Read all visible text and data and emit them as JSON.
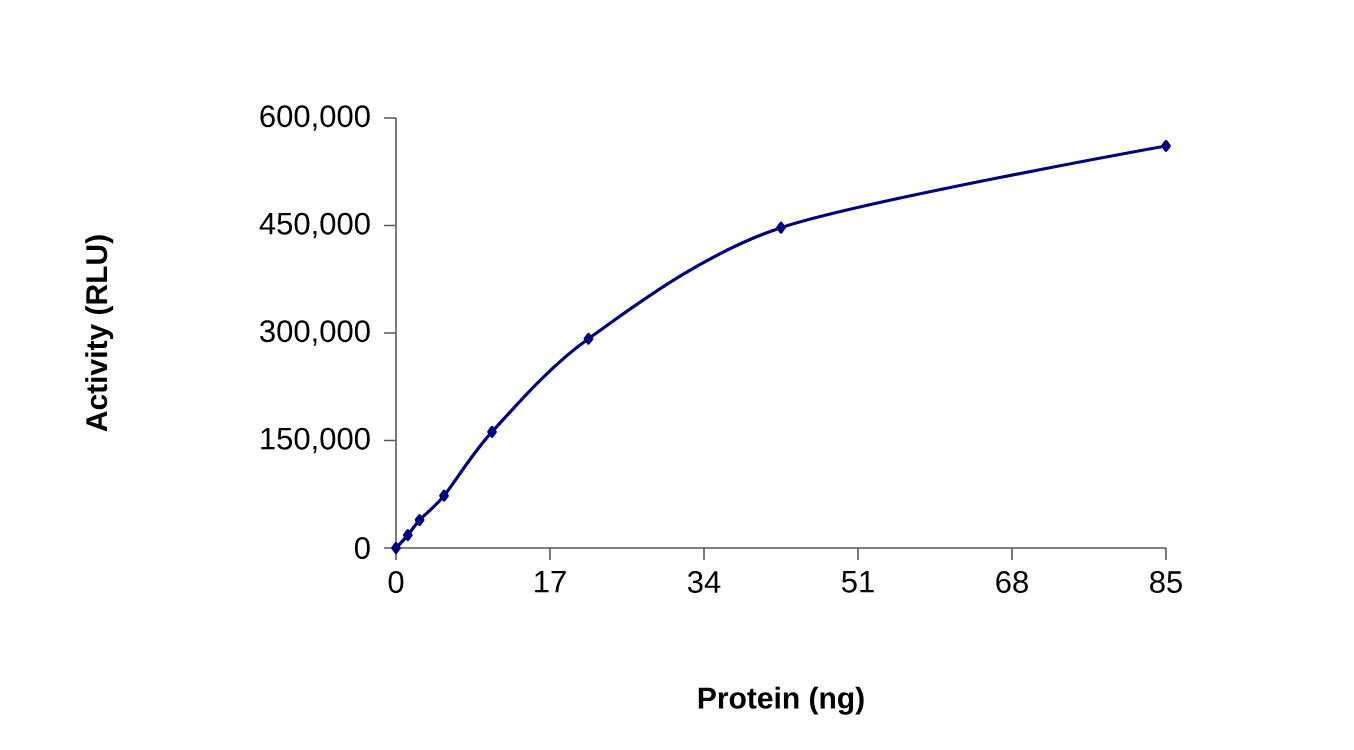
{
  "chart_data": {
    "type": "line",
    "xlabel": "Protein (ng)",
    "ylabel": "Activity (RLU)",
    "x": [
      0,
      1.3,
      2.6,
      5.3,
      10.6,
      21.25,
      42.5,
      85
    ],
    "series": [
      {
        "color": "#000080",
        "values": [
          0,
          18000,
          39000,
          73000,
          162000,
          292000,
          447000,
          561000
        ]
      }
    ],
    "xlim": [
      0,
      85
    ],
    "xticks": [
      0,
      17,
      34,
      51,
      68,
      85
    ],
    "ylim": [
      0,
      600000
    ],
    "yticks": [
      0,
      {
        "value": 150000,
        "label": "150,000"
      },
      {
        "value": 300000,
        "label": "300,000"
      },
      {
        "value": 450000,
        "label": "450,000"
      },
      {
        "value": 600000,
        "label": "600,000"
      }
    ],
    "marker": "diamond",
    "line_style": "solid"
  }
}
